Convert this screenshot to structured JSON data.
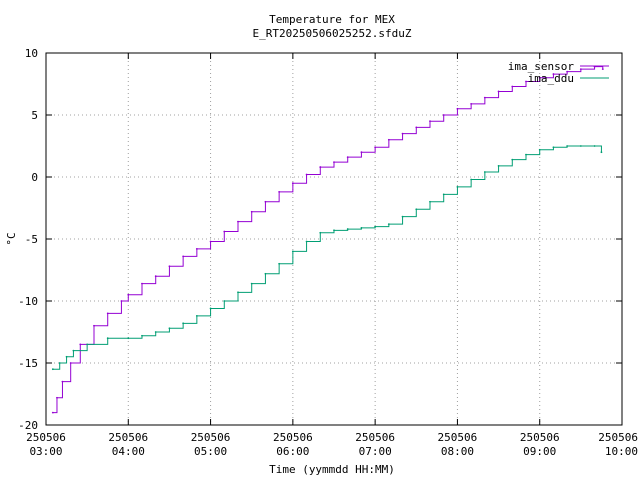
{
  "chart_data": {
    "type": "line",
    "title": "Temperature for MEX",
    "subtitle": "E_RT2025050602525​2.sfduZ",
    "xlabel": "Time (yymmdd HH:MM)",
    "ylabel": "°C",
    "ylim": [
      -20,
      10
    ],
    "xlim": [
      "2025-05-06 03:00",
      "2025-05-06 10:00"
    ],
    "grid": true,
    "legend_position": "top-right",
    "y_ticks": [
      -20,
      -15,
      -10,
      -5,
      0,
      5,
      10
    ],
    "x_ticks": [
      {
        "date": "250506",
        "time": "03:00"
      },
      {
        "date": "250506",
        "time": "04:00"
      },
      {
        "date": "250506",
        "time": "05:00"
      },
      {
        "date": "250506",
        "time": "06:00"
      },
      {
        "date": "250506",
        "time": "07:00"
      },
      {
        "date": "250506",
        "time": "08:00"
      },
      {
        "date": "250506",
        "time": "09:00"
      },
      {
        "date": "250506",
        "time": "10:00"
      }
    ],
    "series": [
      {
        "name": "ima_sensor",
        "color": "#9400d3",
        "x": [
          "03:05",
          "03:08",
          "03:12",
          "03:18",
          "03:25",
          "03:35",
          "03:45",
          "03:55",
          "04:00",
          "04:10",
          "04:20",
          "04:30",
          "04:40",
          "04:50",
          "05:00",
          "05:10",
          "05:20",
          "05:30",
          "05:40",
          "05:50",
          "06:00",
          "06:10",
          "06:20",
          "06:30",
          "06:40",
          "06:50",
          "07:00",
          "07:10",
          "07:20",
          "07:30",
          "07:40",
          "07:50",
          "08:00",
          "08:10",
          "08:20",
          "08:30",
          "08:40",
          "08:50",
          "09:00",
          "09:10",
          "09:20",
          "09:30",
          "09:40",
          "09:46"
        ],
        "values": [
          -19.0,
          -17.8,
          -16.5,
          -15.0,
          -13.5,
          -12.0,
          -11.0,
          -10.0,
          -9.5,
          -8.6,
          -8.0,
          -7.2,
          -6.4,
          -5.8,
          -5.2,
          -4.4,
          -3.6,
          -2.8,
          -2.0,
          -1.2,
          -0.5,
          0.2,
          0.8,
          1.2,
          1.6,
          2.0,
          2.4,
          3.0,
          3.5,
          4.0,
          4.5,
          5.0,
          5.5,
          5.9,
          6.4,
          6.9,
          7.3,
          7.7,
          8.0,
          8.3,
          8.5,
          8.7,
          8.9,
          8.7
        ]
      },
      {
        "name": "ima_ddu",
        "color": "#009e73",
        "x": [
          "03:05",
          "03:10",
          "03:15",
          "03:20",
          "03:30",
          "03:45",
          "04:00",
          "04:10",
          "04:20",
          "04:30",
          "04:40",
          "04:50",
          "05:00",
          "05:10",
          "05:20",
          "05:30",
          "05:40",
          "05:50",
          "06:00",
          "06:10",
          "06:20",
          "06:30",
          "06:40",
          "06:50",
          "07:00",
          "07:10",
          "07:20",
          "07:30",
          "07:40",
          "07:50",
          "08:00",
          "08:10",
          "08:20",
          "08:30",
          "08:40",
          "08:50",
          "09:00",
          "09:10",
          "09:20",
          "09:30",
          "09:40",
          "09:45"
        ],
        "values": [
          -15.5,
          -15.0,
          -14.5,
          -14.0,
          -13.5,
          -13.0,
          -13.0,
          -12.8,
          -12.5,
          -12.2,
          -11.8,
          -11.2,
          -10.6,
          -10.0,
          -9.3,
          -8.6,
          -7.8,
          -7.0,
          -6.0,
          -5.2,
          -4.5,
          -4.3,
          -4.2,
          -4.1,
          -4.0,
          -3.8,
          -3.2,
          -2.6,
          -2.0,
          -1.4,
          -0.8,
          -0.2,
          0.4,
          0.9,
          1.4,
          1.8,
          2.2,
          2.4,
          2.5,
          2.5,
          2.5,
          2.0
        ]
      }
    ]
  }
}
